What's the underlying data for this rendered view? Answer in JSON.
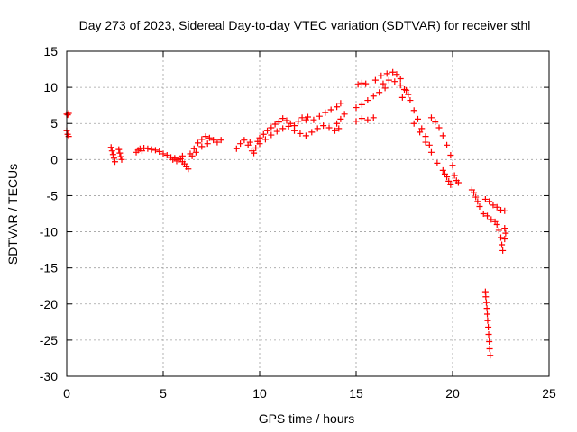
{
  "chart_data": {
    "type": "scatter",
    "title": "Day 273 of 2023, Sidereal Day-to-day VTEC variation (SDTVAR) for receiver sthl",
    "xlabel": "GPS time / hours",
    "ylabel": "SDTVAR / TECUs",
    "xlim": [
      0,
      25
    ],
    "ylim": [
      -30,
      15
    ],
    "xticks": [
      0,
      5,
      10,
      15,
      20,
      25
    ],
    "yticks": [
      -30,
      -25,
      -20,
      -15,
      -10,
      -5,
      0,
      5,
      10,
      15
    ],
    "xtick_labels": [
      "0",
      "5",
      "10",
      "15",
      "20",
      "25"
    ],
    "ytick_labels": [
      "-30",
      "-25",
      "-20",
      "-15",
      "-10",
      "-5",
      "0",
      "5",
      "10",
      "15"
    ],
    "grid": true,
    "marker": "+",
    "color": "#ff0000",
    "series": [
      {
        "name": "sthl",
        "points": [
          [
            0.0,
            6.3
          ],
          [
            0.05,
            6.2
          ],
          [
            0.1,
            6.4
          ],
          [
            0.0,
            4.0
          ],
          [
            0.05,
            3.5
          ],
          [
            0.1,
            3.2
          ],
          [
            2.3,
            1.7
          ],
          [
            2.35,
            1.2
          ],
          [
            2.4,
            0.7
          ],
          [
            2.45,
            0.2
          ],
          [
            2.5,
            -0.3
          ],
          [
            2.7,
            1.4
          ],
          [
            2.75,
            0.9
          ],
          [
            2.8,
            0.4
          ],
          [
            2.85,
            0.0
          ],
          [
            3.6,
            1.0
          ],
          [
            3.7,
            1.3
          ],
          [
            3.8,
            1.5
          ],
          [
            3.9,
            1.2
          ],
          [
            4.0,
            1.6
          ],
          [
            4.2,
            1.5
          ],
          [
            4.4,
            1.4
          ],
          [
            4.6,
            1.3
          ],
          [
            4.8,
            1.1
          ],
          [
            5.0,
            0.8
          ],
          [
            5.2,
            0.6
          ],
          [
            5.4,
            0.3
          ],
          [
            5.6,
            0.2
          ],
          [
            5.8,
            0.0
          ],
          [
            6.0,
            -0.3
          ],
          [
            6.1,
            -0.6
          ],
          [
            6.2,
            -1.0
          ],
          [
            6.3,
            -1.3
          ],
          [
            5.5,
            0.0
          ],
          [
            5.7,
            -0.2
          ],
          [
            5.9,
            0.1
          ],
          [
            6.0,
            0.5
          ],
          [
            6.4,
            0.8
          ],
          [
            6.6,
            1.5
          ],
          [
            6.8,
            2.3
          ],
          [
            7.0,
            2.8
          ],
          [
            7.2,
            3.2
          ],
          [
            7.4,
            3.0
          ],
          [
            7.6,
            2.7
          ],
          [
            7.8,
            2.4
          ],
          [
            8.0,
            2.7
          ],
          [
            7.0,
            1.8
          ],
          [
            7.3,
            2.2
          ],
          [
            6.7,
            1.0
          ],
          [
            6.5,
            0.5
          ],
          [
            8.8,
            1.5
          ],
          [
            9.0,
            2.2
          ],
          [
            9.2,
            2.7
          ],
          [
            9.4,
            2.0
          ],
          [
            9.5,
            2.4
          ],
          [
            9.6,
            1.2
          ],
          [
            9.7,
            0.9
          ],
          [
            9.8,
            1.6
          ],
          [
            9.9,
            2.5
          ],
          [
            10.0,
            3.0
          ],
          [
            10.2,
            3.5
          ],
          [
            10.4,
            4.0
          ],
          [
            10.6,
            4.4
          ],
          [
            10.8,
            4.9
          ],
          [
            11.0,
            5.2
          ],
          [
            11.2,
            5.7
          ],
          [
            11.4,
            5.4
          ],
          [
            11.6,
            5.0
          ],
          [
            11.8,
            4.7
          ],
          [
            12.0,
            5.3
          ],
          [
            12.2,
            5.8
          ],
          [
            12.4,
            5.5
          ],
          [
            10.0,
            2.2
          ],
          [
            10.3,
            2.8
          ],
          [
            10.6,
            3.4
          ],
          [
            10.9,
            3.9
          ],
          [
            11.2,
            4.3
          ],
          [
            11.5,
            4.6
          ],
          [
            11.8,
            4.0
          ],
          [
            12.1,
            3.6
          ],
          [
            12.4,
            3.3
          ],
          [
            12.7,
            3.8
          ],
          [
            13.0,
            4.3
          ],
          [
            13.3,
            4.7
          ],
          [
            13.6,
            4.4
          ],
          [
            13.9,
            4.0
          ],
          [
            12.5,
            5.9
          ],
          [
            12.8,
            5.5
          ],
          [
            13.1,
            6.0
          ],
          [
            13.4,
            6.5
          ],
          [
            13.7,
            6.9
          ],
          [
            14.0,
            7.3
          ],
          [
            14.2,
            7.8
          ],
          [
            14.0,
            5.0
          ],
          [
            14.2,
            5.6
          ],
          [
            14.4,
            6.3
          ],
          [
            14.1,
            4.3
          ],
          [
            15.0,
            5.3
          ],
          [
            15.3,
            5.7
          ],
          [
            15.6,
            5.5
          ],
          [
            15.9,
            5.8
          ],
          [
            15.0,
            7.2
          ],
          [
            15.3,
            7.6
          ],
          [
            15.6,
            8.2
          ],
          [
            15.9,
            8.8
          ],
          [
            16.2,
            9.3
          ],
          [
            16.5,
            9.9
          ],
          [
            15.1,
            10.4
          ],
          [
            15.3,
            10.6
          ],
          [
            15.5,
            10.5
          ],
          [
            16.0,
            11.0
          ],
          [
            16.3,
            11.6
          ],
          [
            16.6,
            11.9
          ],
          [
            16.9,
            12.1
          ],
          [
            17.1,
            11.8
          ],
          [
            17.3,
            11.2
          ],
          [
            16.4,
            10.5
          ],
          [
            16.7,
            11.0
          ],
          [
            17.0,
            10.8
          ],
          [
            17.3,
            10.3
          ],
          [
            17.5,
            9.7
          ],
          [
            17.7,
            9.0
          ],
          [
            17.4,
            8.6
          ],
          [
            17.6,
            9.6
          ],
          [
            17.8,
            8.2
          ],
          [
            18.0,
            6.8
          ],
          [
            18.2,
            5.6
          ],
          [
            18.4,
            4.3
          ],
          [
            18.6,
            3.2
          ],
          [
            18.8,
            2.0
          ],
          [
            18.0,
            5.0
          ],
          [
            18.3,
            3.8
          ],
          [
            18.6,
            2.4
          ],
          [
            18.9,
            1.0
          ],
          [
            19.2,
            -0.5
          ],
          [
            19.5,
            -1.5
          ],
          [
            18.9,
            5.8
          ],
          [
            19.1,
            5.2
          ],
          [
            19.3,
            4.4
          ],
          [
            19.5,
            3.3
          ],
          [
            19.7,
            2.0
          ],
          [
            19.9,
            0.6
          ],
          [
            20.0,
            -0.8
          ],
          [
            20.1,
            -2.2
          ],
          [
            20.2,
            -2.9
          ],
          [
            20.3,
            -3.2
          ],
          [
            19.7,
            -2.4
          ],
          [
            19.8,
            -3.0
          ],
          [
            19.9,
            -3.5
          ],
          [
            19.6,
            -2.0
          ],
          [
            21.0,
            -4.2
          ],
          [
            21.1,
            -4.6
          ],
          [
            21.2,
            -5.2
          ],
          [
            21.3,
            -5.8
          ],
          [
            21.4,
            -6.5
          ],
          [
            21.6,
            -7.5
          ],
          [
            21.7,
            -5.5
          ],
          [
            21.9,
            -5.8
          ],
          [
            22.1,
            -6.3
          ],
          [
            22.3,
            -6.6
          ],
          [
            22.5,
            -7.0
          ],
          [
            22.7,
            -7.1
          ],
          [
            21.8,
            -7.8
          ],
          [
            22.0,
            -8.3
          ],
          [
            22.2,
            -8.6
          ],
          [
            22.3,
            -9.0
          ],
          [
            22.4,
            -9.8
          ],
          [
            22.5,
            -10.8
          ],
          [
            22.55,
            -11.8
          ],
          [
            22.6,
            -12.6
          ],
          [
            22.7,
            -9.5
          ],
          [
            22.75,
            -10.2
          ],
          [
            22.7,
            -11.0
          ],
          [
            21.7,
            -18.3
          ],
          [
            21.72,
            -19.0
          ],
          [
            21.75,
            -19.8
          ],
          [
            21.78,
            -20.6
          ],
          [
            21.8,
            -21.4
          ],
          [
            21.82,
            -22.3
          ],
          [
            21.85,
            -23.2
          ],
          [
            21.87,
            -24.2
          ],
          [
            21.9,
            -25.2
          ],
          [
            21.92,
            -26.2
          ],
          [
            21.95,
            -27.1
          ]
        ]
      }
    ]
  }
}
